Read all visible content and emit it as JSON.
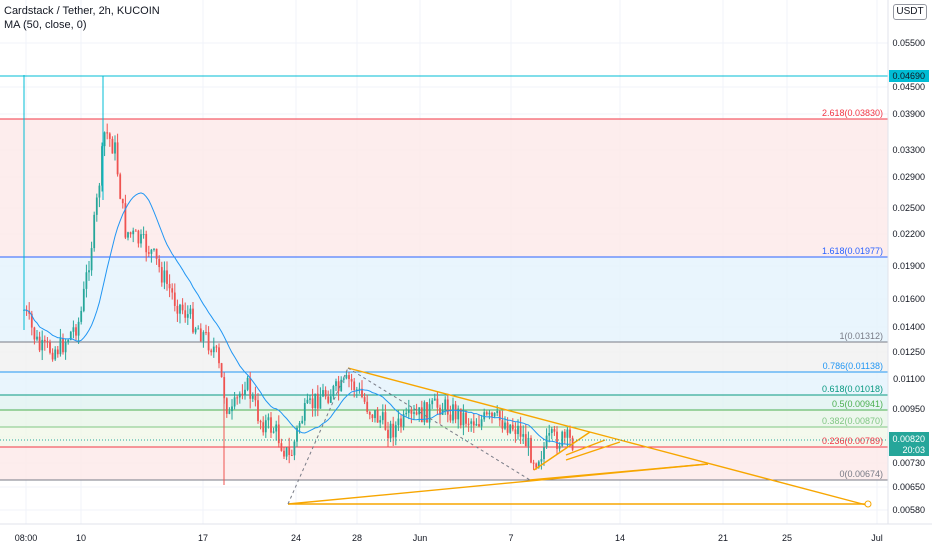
{
  "legend": {
    "title": "Cardstack / Tether, 2h, KUCOIN",
    "indicator": "MA (50, close, 0)"
  },
  "currency_button": "USDT",
  "price_axis": {
    "ticks": [
      "0.05500",
      "0.04500",
      "0.03900",
      "0.03300",
      "0.02900",
      "0.02500",
      "0.02200",
      "0.01900",
      "0.01600",
      "0.01400",
      "0.01250",
      "0.01100",
      "0.00950",
      "0.00820",
      "0.00730",
      "0.00650",
      "0.00580"
    ],
    "last_price": "0.00820",
    "countdown": "20:03",
    "marker_price": "0.04690"
  },
  "time_axis": {
    "ticks": [
      "08:00",
      "10",
      "17",
      "24",
      "28",
      "Jun",
      "7",
      "14",
      "21",
      "25",
      "Jul"
    ]
  },
  "fib_levels": [
    {
      "label": "2.618(0.03830)",
      "color": "#f23645"
    },
    {
      "label": "1.618(0.01977)",
      "color": "#2962ff"
    },
    {
      "label": "1(0.01312)",
      "color": "#787b86"
    },
    {
      "label": "0.786(0.01138)",
      "color": "#2196f3"
    },
    {
      "label": "0.618(0.01018)",
      "color": "#089981"
    },
    {
      "label": "0.5(0.00941)",
      "color": "#4caf50"
    },
    {
      "label": "0.382(0.00870)",
      "color": "#81c784"
    },
    {
      "label": "0.236(0.00789)",
      "color": "#f23645"
    },
    {
      "label": "0(0.00674)",
      "color": "#787b86"
    }
  ],
  "colors": {
    "up": "#26a69a",
    "down": "#ef5350",
    "ma": "#2196f3",
    "trendline": "#f7a600",
    "marker": "#00bcd4"
  }
}
